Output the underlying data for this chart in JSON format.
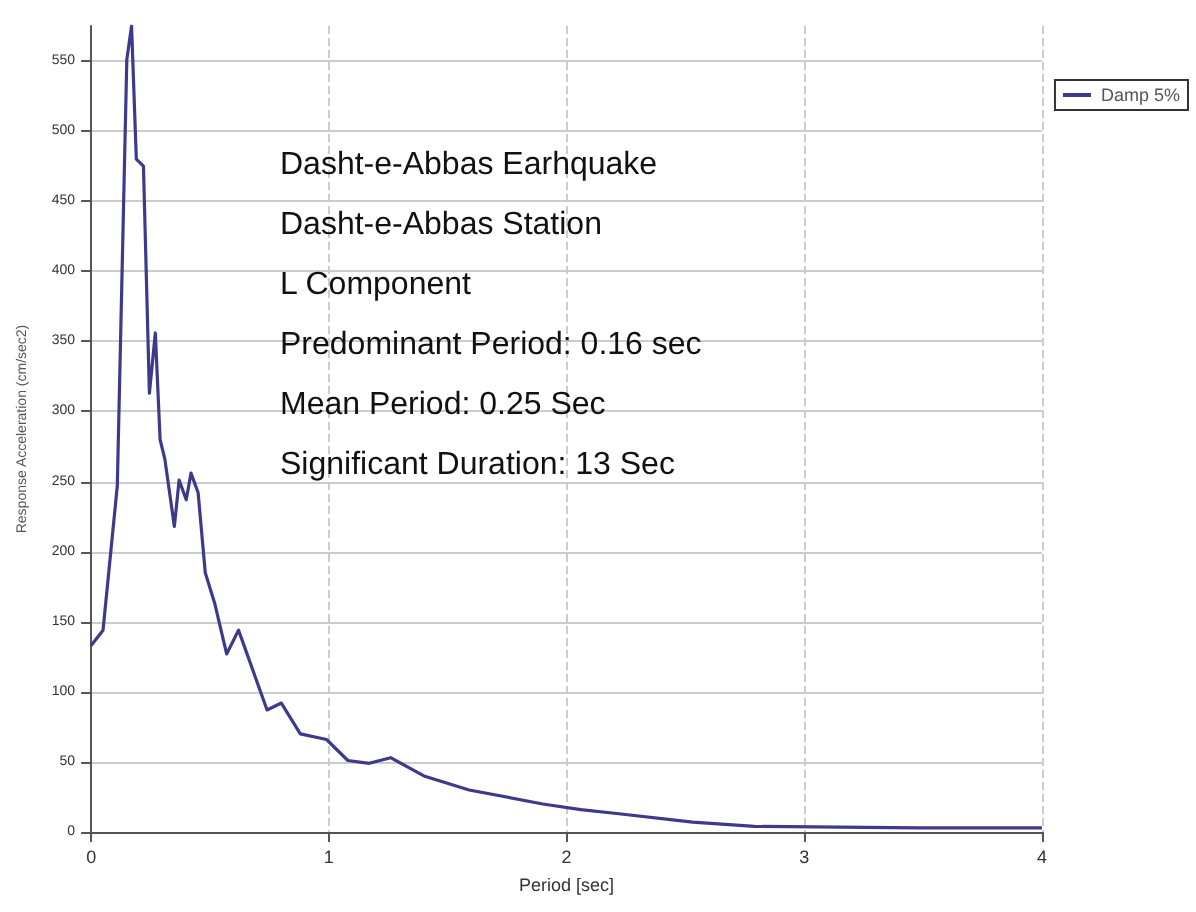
{
  "chart_data": {
    "type": "line",
    "xlabel": "Period [sec]",
    "ylabel": "Response Acceleration (cm/sec2)",
    "annotations": [
      "Dasht-e-Abbas Earhquake",
      "Dasht-e-Abbas Station",
      "L Component",
      "Predominant Period: 0.16 sec",
      "Mean Period: 0.25 Sec",
      "Significant Duration: 13 Sec"
    ],
    "series": [
      {
        "name": "Damp 5%",
        "color": "#3d3a8c",
        "x": [
          0,
          0.05,
          0.11,
          0.15,
          0.17,
          0.19,
          0.22,
          0.245,
          0.27,
          0.29,
          0.31,
          0.35,
          0.37,
          0.4,
          0.42,
          0.45,
          0.48,
          0.52,
          0.57,
          0.62,
          0.74,
          0.8,
          0.88,
          0.99,
          1.08,
          1.17,
          1.26,
          1.4,
          1.59,
          1.9,
          2.06,
          2.22,
          2.53,
          2.79,
          3.48,
          3.98,
          4
        ],
        "values": [
          133,
          144,
          247,
          551,
          575,
          480,
          475,
          313,
          356,
          280,
          266,
          218,
          251,
          237,
          256,
          242,
          185,
          163,
          127,
          144,
          87,
          92,
          70,
          66,
          51,
          49,
          53,
          40,
          30,
          20,
          16,
          13,
          7,
          4,
          3,
          3,
          3
        ]
      }
    ],
    "xlim": [
      0,
      4
    ],
    "xticks": [
      0,
      1,
      2,
      3,
      4
    ],
    "ylim": [
      0,
      575
    ],
    "yticks": [
      0,
      50,
      100,
      150,
      200,
      250,
      300,
      350,
      400,
      450,
      500,
      550
    ],
    "grid": true,
    "legend": "top right",
    "marker": "none",
    "line_style": "solid"
  }
}
